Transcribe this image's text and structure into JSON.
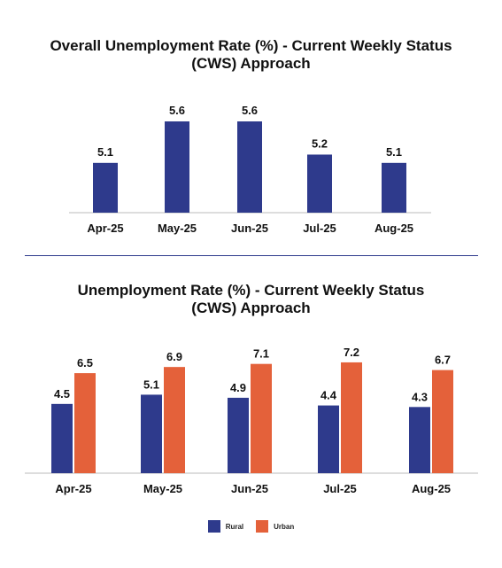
{
  "chart_data": [
    {
      "type": "bar",
      "title": "Overall Unemployment Rate (%) - Current Weekly Status (CWS) Approach",
      "title_lines": [
        "Overall Unemployment Rate (%) - Current Weekly Status",
        "(CWS) Approach"
      ],
      "categories": [
        "Apr-25",
        "May-25",
        "Jun-25",
        "Jul-25",
        "Aug-25"
      ],
      "series": [
        {
          "values": [
            5.1,
            5.6,
            5.6,
            5.2,
            5.1
          ],
          "color": "#2e3a8c"
        }
      ],
      "ylim": [
        4.5,
        5.7
      ],
      "grid": false
    },
    {
      "type": "bar",
      "title": "Unemployment Rate (%) - Current Weekly Status (CWS) Approach",
      "title_lines": [
        "Unemployment Rate (%) - Current Weekly Status",
        "(CWS) Approach"
      ],
      "categories": [
        "Apr-25",
        "May-25",
        "Jun-25",
        "Jul-25",
        "Aug-25"
      ],
      "series": [
        {
          "name": "Rural",
          "values": [
            4.5,
            5.1,
            4.9,
            4.4,
            4.3
          ],
          "color": "#2e3a8c"
        },
        {
          "name": "Urban",
          "values": [
            6.5,
            6.9,
            7.1,
            7.2,
            6.7
          ],
          "color": "#e4613a"
        }
      ],
      "ylim": [
        0,
        7.6
      ],
      "grid": false,
      "legend": "bottom-center"
    }
  ]
}
